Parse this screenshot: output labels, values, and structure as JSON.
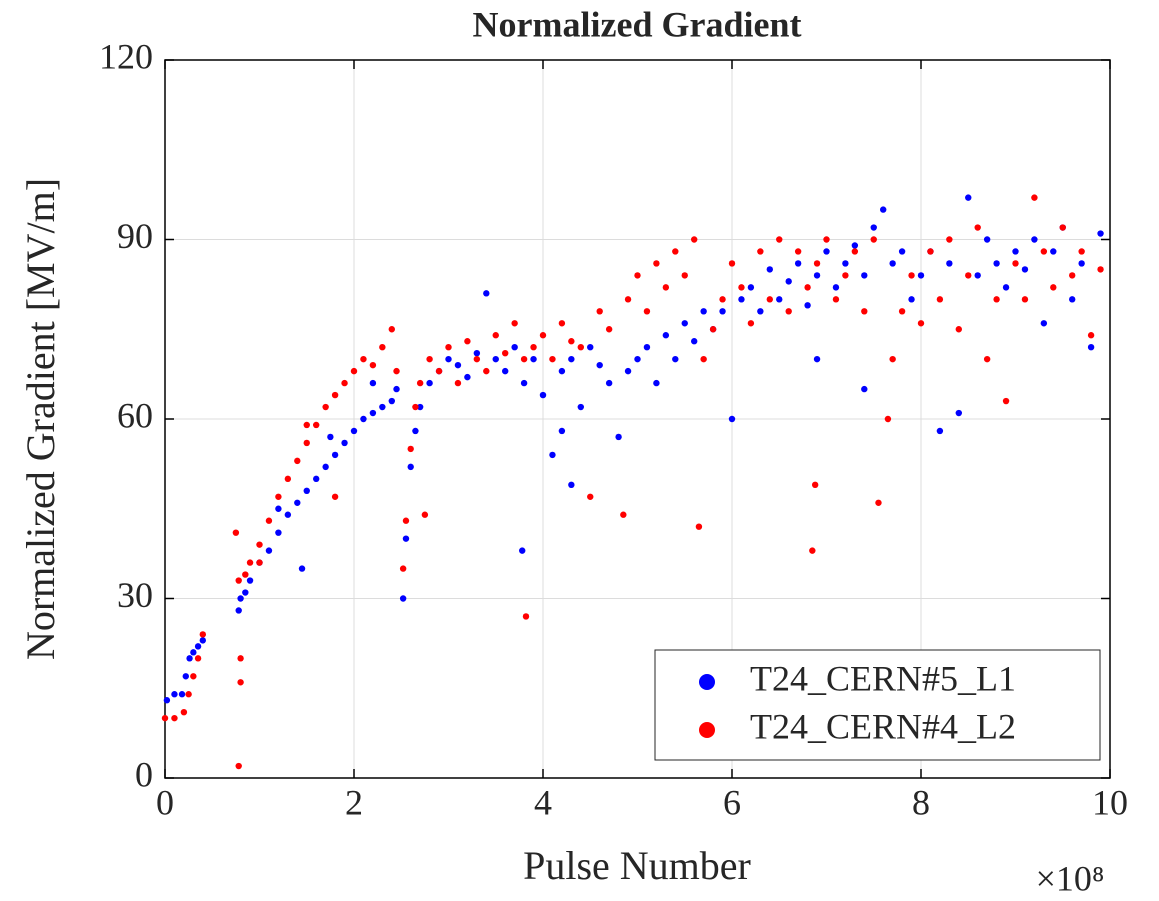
{
  "chart_data": {
    "type": "scatter",
    "title": "Normalized Gradient",
    "x_label": "Pulse Number",
    "y_label": "Normalized Gradient [MV/m]",
    "x_multiplier": "×10⁸",
    "xlim": [
      0,
      10
    ],
    "xticks": [
      0,
      2,
      4,
      6,
      8,
      10
    ],
    "ylim": [
      0,
      120
    ],
    "yticks": [
      0,
      30,
      60,
      90,
      120
    ],
    "grid": true,
    "legend": "lower right",
    "series": [
      {
        "name": "T24_CERN#5_L1",
        "color": "#0000ff",
        "x": [
          0.02,
          0.1,
          0.18,
          0.22,
          0.26,
          0.3,
          0.35,
          0.4,
          0.78,
          0.8,
          0.85,
          0.9,
          1.0,
          1.1,
          1.2,
          1.3,
          1.4,
          1.5,
          1.6,
          1.7,
          1.8,
          1.9,
          2.0,
          2.1,
          2.2,
          2.3,
          2.4,
          2.45,
          1.45,
          1.2,
          1.75,
          2.2,
          2.52,
          2.55,
          2.6,
          2.65,
          2.7,
          2.8,
          2.9,
          3.0,
          3.1,
          3.2,
          3.3,
          3.4,
          3.5,
          3.6,
          3.7,
          3.78,
          3.8,
          3.9,
          4.0,
          4.1,
          4.2,
          4.3,
          4.4,
          4.5,
          4.6,
          4.7,
          4.8,
          4.9,
          5.0,
          5.1,
          5.2,
          5.3,
          5.4,
          5.5,
          5.6,
          5.7,
          5.8,
          5.9,
          6.0,
          6.1,
          6.2,
          6.3,
          6.4,
          6.5,
          6.6,
          6.7,
          6.8,
          6.9,
          7.0,
          7.1,
          7.2,
          7.3,
          7.4,
          7.5,
          7.6,
          7.7,
          7.8,
          7.9,
          8.0,
          8.1,
          8.2,
          8.3,
          8.4,
          8.5,
          8.6,
          8.7,
          8.8,
          8.9,
          9.0,
          9.1,
          9.2,
          9.3,
          9.4,
          9.5,
          9.6,
          9.7,
          9.8,
          9.9,
          4.3,
          4.2,
          7.4,
          6.9
        ],
        "values": [
          13,
          14,
          14,
          17,
          20,
          21,
          22,
          23,
          28,
          30,
          31,
          33,
          36,
          38,
          41,
          44,
          46,
          48,
          50,
          52,
          54,
          56,
          58,
          60,
          61,
          62,
          63,
          65,
          35,
          45,
          57,
          66,
          30,
          40,
          52,
          58,
          62,
          66,
          68,
          70,
          69,
          67,
          71,
          81,
          70,
          68,
          72,
          38,
          66,
          70,
          64,
          54,
          68,
          70,
          62,
          72,
          69,
          66,
          57,
          68,
          70,
          72,
          66,
          74,
          70,
          76,
          73,
          78,
          75,
          78,
          60,
          80,
          82,
          78,
          85,
          80,
          83,
          86,
          79,
          84,
          88,
          82,
          86,
          89,
          84,
          92,
          95,
          86,
          88,
          80,
          84,
          88,
          58,
          86,
          61,
          97,
          84,
          90,
          86,
          82,
          88,
          85,
          90,
          76,
          88,
          92,
          80,
          86,
          72,
          91,
          49,
          58,
          65,
          70
        ]
      },
      {
        "name": "T24_CERN#4_L2",
        "color": "#ff0000",
        "x": [
          0.0,
          0.1,
          0.2,
          0.25,
          0.3,
          0.35,
          0.4,
          0.75,
          0.78,
          0.8,
          0.8,
          0.78,
          0.85,
          0.9,
          1.0,
          1.1,
          1.2,
          1.3,
          1.4,
          1.5,
          1.6,
          1.7,
          1.8,
          1.9,
          2.0,
          2.1,
          2.2,
          2.3,
          2.4,
          1.5,
          1.8,
          1.0,
          2.45,
          2.52,
          2.55,
          2.6,
          2.65,
          2.7,
          2.75,
          2.8,
          2.9,
          3.0,
          3.1,
          3.2,
          3.3,
          3.4,
          3.5,
          3.6,
          3.7,
          3.82,
          3.8,
          3.9,
          4.0,
          4.1,
          4.2,
          4.3,
          4.4,
          4.5,
          4.6,
          4.7,
          4.85,
          4.9,
          5.0,
          5.1,
          5.2,
          5.3,
          5.4,
          5.5,
          5.6,
          5.65,
          5.7,
          5.8,
          5.9,
          6.0,
          6.1,
          6.2,
          6.3,
          6.4,
          6.5,
          6.6,
          6.7,
          6.8,
          6.88,
          6.85,
          6.9,
          7.0,
          7.1,
          7.2,
          7.3,
          7.4,
          7.5,
          7.55,
          7.65,
          7.7,
          7.8,
          7.9,
          8.0,
          8.1,
          8.2,
          8.3,
          8.4,
          8.5,
          8.6,
          8.7,
          8.8,
          8.9,
          9.0,
          9.1,
          9.2,
          9.3,
          9.4,
          9.5,
          9.6,
          9.7,
          9.8,
          9.9
        ],
        "values": [
          10,
          10,
          11,
          14,
          17,
          20,
          24,
          41,
          2,
          16,
          20,
          33,
          34,
          36,
          39,
          43,
          47,
          50,
          53,
          56,
          59,
          62,
          64,
          66,
          68,
          70,
          69,
          72,
          75,
          59,
          47,
          36,
          68,
          35,
          43,
          55,
          62,
          66,
          44,
          70,
          68,
          72,
          66,
          73,
          70,
          68,
          74,
          71,
          76,
          27,
          70,
          72,
          74,
          70,
          76,
          73,
          72,
          47,
          78,
          75,
          44,
          80,
          84,
          78,
          86,
          82,
          88,
          84,
          90,
          42,
          70,
          75,
          80,
          86,
          82,
          76,
          88,
          80,
          90,
          78,
          88,
          82,
          49,
          38,
          86,
          90,
          80,
          84,
          88,
          78,
          90,
          46,
          60,
          70,
          78,
          84,
          76,
          88,
          80,
          90,
          75,
          84,
          92,
          70,
          80,
          63,
          86,
          80,
          97,
          88,
          82,
          92,
          84,
          88,
          74,
          85
        ]
      }
    ]
  }
}
